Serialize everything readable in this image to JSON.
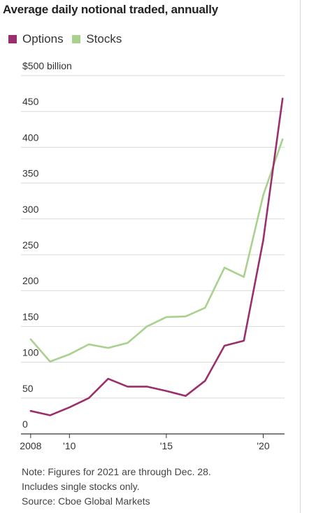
{
  "chart_data": {
    "type": "line",
    "title": "Average daily notional traded, annually",
    "x": [
      2008,
      2009,
      2010,
      2011,
      2012,
      2013,
      2014,
      2015,
      2016,
      2017,
      2018,
      2019,
      2020,
      2021
    ],
    "x_tick_values": [
      2008,
      2010,
      2015,
      2020
    ],
    "x_tick_labels": [
      "2008",
      "'10",
      "'15",
      "'20"
    ],
    "y_ticks": [
      0,
      50,
      100,
      150,
      200,
      250,
      300,
      350,
      400,
      450,
      500
    ],
    "y_tick_labels": [
      "0",
      "50",
      "100",
      "150",
      "200",
      "250",
      "300",
      "350",
      "400",
      "450",
      "$500 billion"
    ],
    "ylim": [
      0,
      500
    ],
    "xlim": [
      2007.5,
      2021.1
    ],
    "grid": true,
    "legend_position": "top-left",
    "series": [
      {
        "name": "Options",
        "color": "#9b2f6e",
        "values": [
          32,
          26,
          37,
          50,
          77,
          66,
          66,
          60,
          53,
          74,
          123,
          130,
          270,
          468
        ]
      },
      {
        "name": "Stocks",
        "color": "#a9d18e",
        "values": [
          132,
          101,
          111,
          125,
          120,
          127,
          150,
          163,
          164,
          176,
          232,
          219,
          333,
          411
        ]
      }
    ]
  },
  "notes": [
    "Note: Figures for 2021 are through Dec. 28.",
    "Includes single stocks only.",
    "Source: Cboe Global Markets"
  ]
}
